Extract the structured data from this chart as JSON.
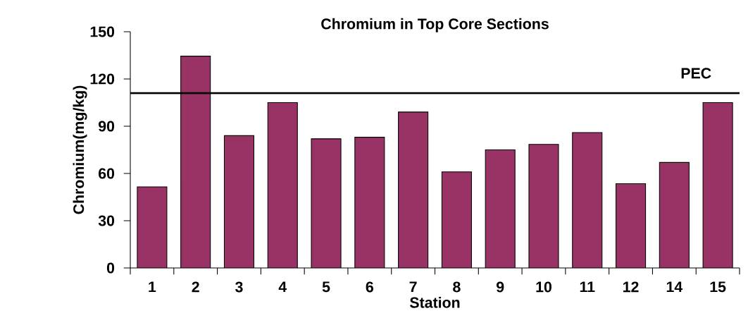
{
  "chart_data": {
    "type": "bar",
    "title": "Chromium in Top Core Sections",
    "xlabel": "Station",
    "ylabel": "Chromium(mg/kg)",
    "categories": [
      "1",
      "2",
      "3",
      "4",
      "5",
      "6",
      "7",
      "8",
      "9",
      "10",
      "11",
      "12",
      "14",
      "15"
    ],
    "values": [
      51.5,
      134.5,
      84,
      105,
      82,
      83,
      99,
      61,
      75,
      78.5,
      86,
      53.5,
      67,
      105
    ],
    "color": "#993366",
    "ylim": [
      0,
      150
    ],
    "yticks": [
      0,
      30,
      60,
      90,
      120,
      150
    ],
    "ref_lines": [
      {
        "axis": "y",
        "value": 111,
        "label": "PEC"
      }
    ]
  }
}
